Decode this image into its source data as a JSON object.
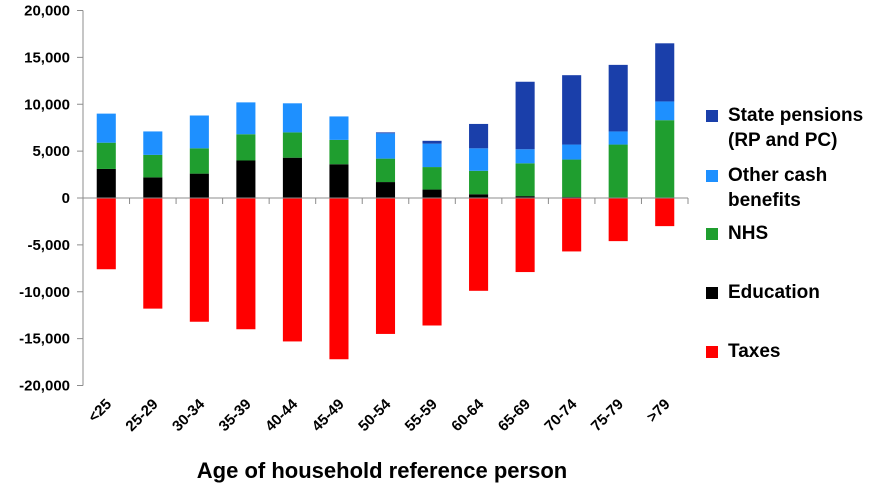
{
  "chart_data": {
    "type": "bar",
    "stacked": true,
    "title": "",
    "xlabel": "Age of household reference person",
    "ylabel": "",
    "ylim": [
      -20000,
      20000
    ],
    "ytick_step": 5000,
    "yticks": [
      "20,000",
      "15,000",
      "10,000",
      "5,000",
      "0",
      "-5,000",
      "-10,000",
      "-15,000",
      "-20,000"
    ],
    "grid": false,
    "legend_position": "right",
    "categories": [
      "<25",
      "25-29",
      "30-34",
      "35-39",
      "40-44",
      "45-49",
      "50-54",
      "55-59",
      "60-64",
      "65-69",
      "70-74",
      "75-79",
      ">79"
    ],
    "series": [
      {
        "name": "Taxes",
        "color": "#ff0000",
        "values": [
          -7600,
          -11800,
          -13200,
          -14000,
          -15300,
          -17200,
          -14500,
          -13600,
          -9900,
          -7900,
          -5700,
          -4600,
          -3000
        ]
      },
      {
        "name": "Education",
        "color": "#000000",
        "values": [
          3100,
          2200,
          2600,
          4000,
          4300,
          3600,
          1700,
          900,
          400,
          200,
          100,
          0,
          0
        ]
      },
      {
        "name": "NHS",
        "color": "#1f9e2f",
        "values": [
          2800,
          2400,
          2700,
          2800,
          2700,
          2600,
          2500,
          2400,
          2500,
          3500,
          4000,
          5700,
          8300
        ]
      },
      {
        "name": "Other cash benefits",
        "color": "#1e90ff",
        "values": [
          3100,
          2500,
          3500,
          3400,
          3100,
          2500,
          2700,
          2500,
          2400,
          1500,
          1600,
          1400,
          2000
        ]
      },
      {
        "name": "State pensions (RP and PC)",
        "color": "#1a3faa",
        "values": [
          0,
          0,
          0,
          0,
          0,
          0,
          100,
          300,
          2600,
          7200,
          7400,
          7100,
          6200
        ]
      }
    ],
    "legend": {
      "items": [
        {
          "lines": [
            "State pensions",
            "(RP and PC)"
          ],
          "color": "#1a3faa"
        },
        {
          "lines": [
            "Other cash",
            "benefits"
          ],
          "color": "#1e90ff"
        },
        {
          "lines": [
            "NHS"
          ],
          "color": "#1f9e2f"
        },
        {
          "lines": [
            "Education"
          ],
          "color": "#000000"
        },
        {
          "lines": [
            "Taxes"
          ],
          "color": "#ff0000"
        }
      ]
    }
  }
}
